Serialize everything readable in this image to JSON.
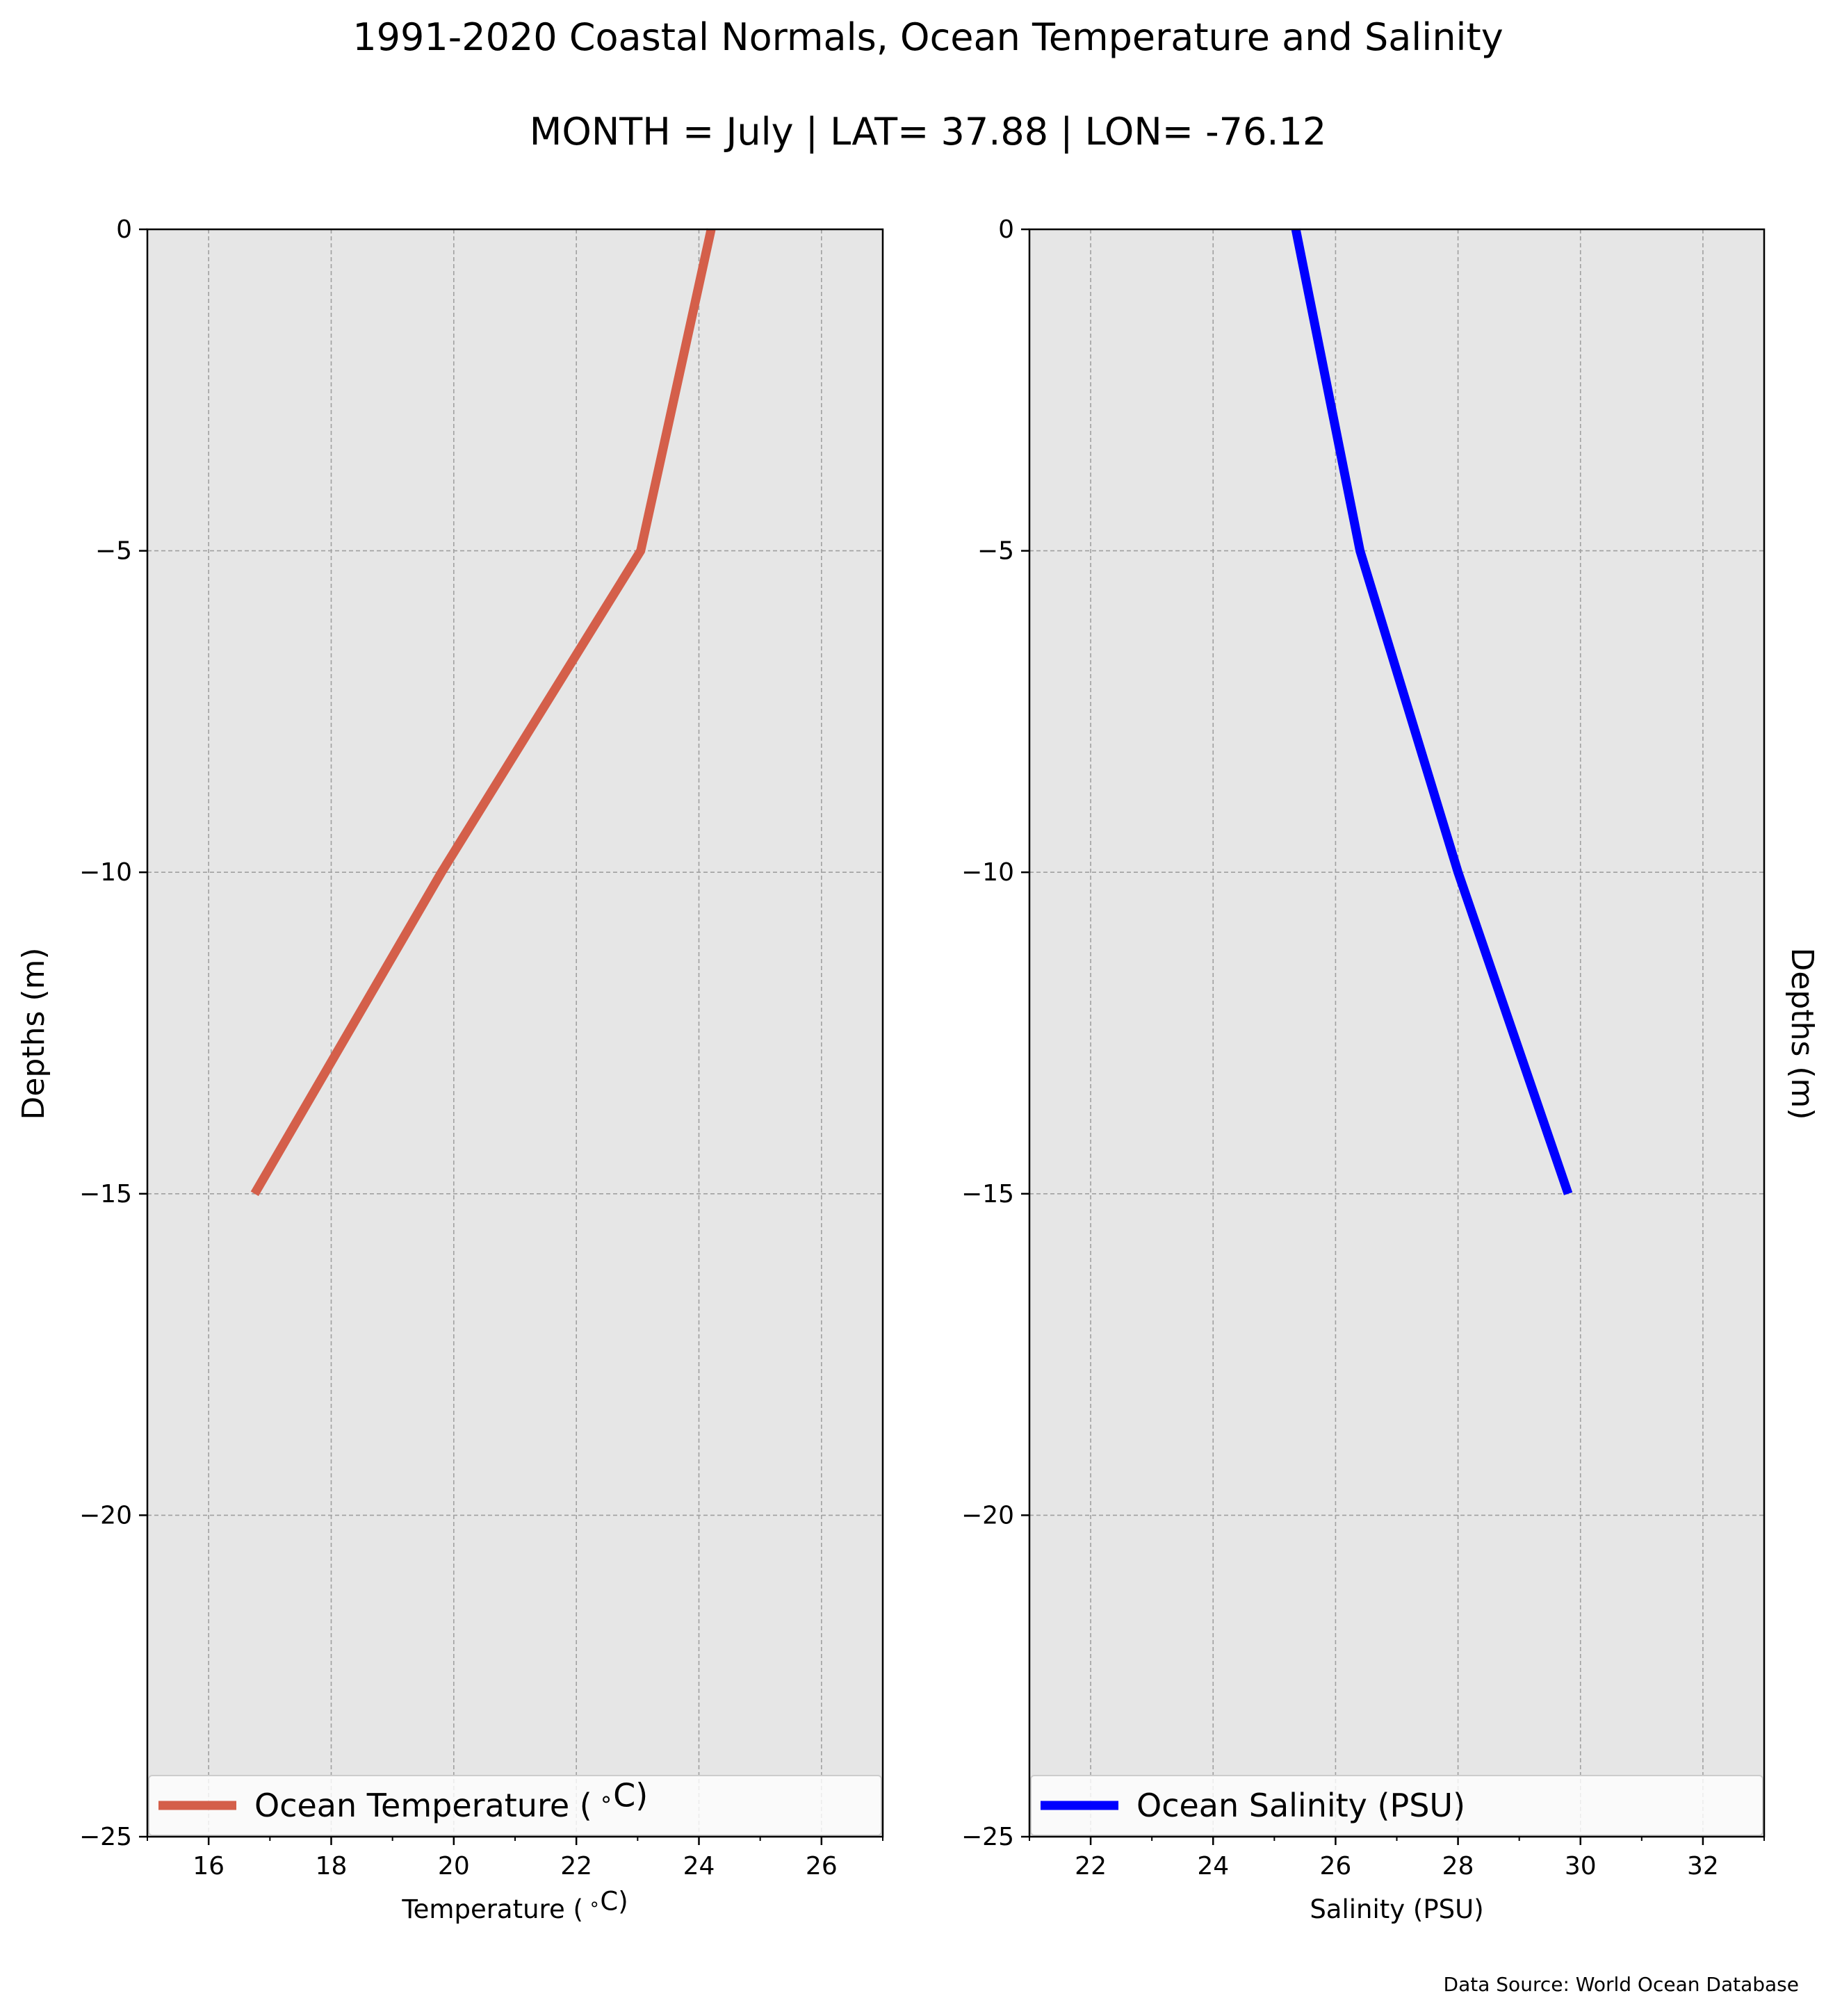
{
  "figure": {
    "title": "1991-2020 Coastal Normals, Ocean Temperature and Salinity",
    "subtitle": "MONTH = July | LAT= 37.88 | LON= -76.12",
    "source_note": "Data Source: World Ocean Database"
  },
  "colors": {
    "background": "#e6e6e6",
    "grid": "#a0a0a0",
    "temperature_line": "#d45f4a",
    "salinity_line": "#0000ff"
  },
  "chart_data": [
    {
      "type": "line",
      "xlabel": "Temperature ($^\\circ$C)",
      "ylabel": "Depths (m)",
      "ylabel_side": "left",
      "xlim": [
        15,
        27
      ],
      "ylim": [
        -25,
        0
      ],
      "x_major_ticks": [
        16,
        18,
        20,
        22,
        24,
        26
      ],
      "x_minor_ticks": [
        15,
        17,
        19,
        21,
        23,
        25,
        27
      ],
      "y_ticks": [
        0,
        -5,
        -10,
        -15,
        -20,
        -25
      ],
      "y_tick_labels": [
        "0",
        "−5",
        "−10",
        "−15",
        "−20",
        "−25"
      ],
      "grid": true,
      "legend_position": "lower",
      "series": [
        {
          "name": "Ocean Temperature ($^\\circ$C)",
          "color": "#d45f4a",
          "x": [
            24.2,
            23.05,
            19.8,
            16.75
          ],
          "y": [
            0,
            -5,
            -10,
            -15
          ]
        }
      ]
    },
    {
      "type": "line",
      "xlabel": "Salinity (PSU)",
      "ylabel": "Depths (m)",
      "ylabel_side": "right",
      "xlim": [
        21,
        33
      ],
      "ylim": [
        -25,
        0
      ],
      "x_major_ticks": [
        22,
        24,
        26,
        28,
        30,
        32
      ],
      "x_minor_ticks": [
        21,
        23,
        25,
        27,
        29,
        31,
        33
      ],
      "y_ticks": [
        0,
        -5,
        -10,
        -15,
        -20,
        -25
      ],
      "y_tick_labels": [
        "0",
        "−5",
        "−10",
        "−15",
        "−20",
        "−25"
      ],
      "grid": true,
      "legend_position": "lower",
      "series": [
        {
          "name": "Ocean Salinity (PSU)",
          "color": "#0000ff",
          "x": [
            25.35,
            26.4,
            28.0,
            29.8
          ],
          "y": [
            0,
            -5,
            -10,
            -15
          ]
        }
      ]
    }
  ]
}
